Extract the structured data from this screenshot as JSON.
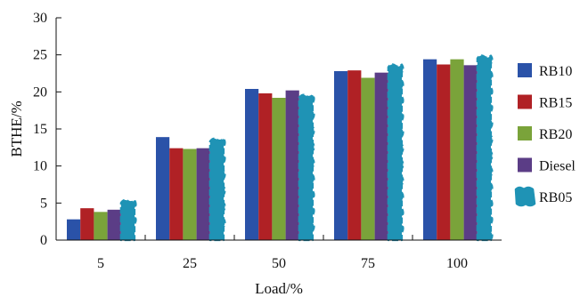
{
  "chart_data": {
    "type": "bar",
    "xlabel": "Load/%",
    "ylabel": "BTHE/%",
    "ylim": [
      0,
      30
    ],
    "yticks": [
      0,
      5,
      10,
      15,
      20,
      25,
      30
    ],
    "categories": [
      "5",
      "25",
      "50",
      "75",
      "100"
    ],
    "legend_position": "right",
    "grid": false,
    "series": [
      {
        "name": "RB10",
        "color": "#2a52a8",
        "values": [
          2.8,
          13.9,
          20.4,
          22.8,
          24.4
        ]
      },
      {
        "name": "RB15",
        "color": "#b02125",
        "values": [
          4.3,
          12.4,
          19.8,
          22.9,
          23.7
        ]
      },
      {
        "name": "RB20",
        "color": "#7aa33a",
        "values": [
          3.8,
          12.3,
          19.2,
          21.9,
          24.4
        ]
      },
      {
        "name": "Diesel",
        "color": "#5b3d86",
        "values": [
          4.1,
          12.4,
          20.2,
          22.6,
          23.6
        ]
      },
      {
        "name": "RB05",
        "color": "#1f93b5",
        "values": [
          5.4,
          13.7,
          19.6,
          23.7,
          24.9
        ]
      }
    ]
  }
}
